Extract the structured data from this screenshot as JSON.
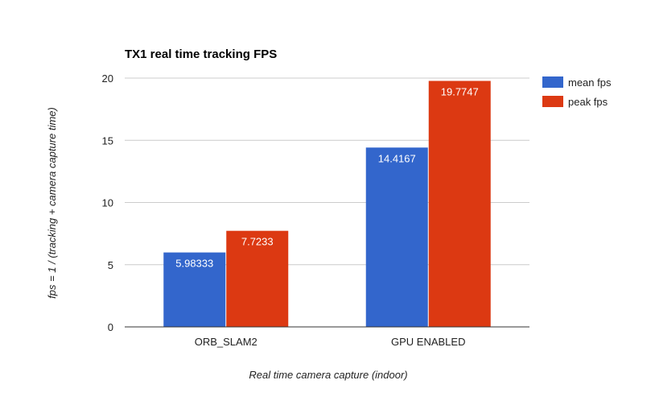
{
  "chart_data": {
    "type": "bar",
    "title": "TX1 real time tracking FPS",
    "xlabel": "Real time camera capture (indoor)",
    "ylabel": "fps = 1 / (tracking + camera capture time)",
    "categories": [
      "ORB_SLAM2",
      "GPU ENABLED"
    ],
    "series": [
      {
        "name": "mean fps",
        "values": [
          5.98333,
          14.4167
        ],
        "labels": [
          "5.98333",
          "14.4167"
        ],
        "color": "#3366cc"
      },
      {
        "name": "peak fps",
        "values": [
          7.7233,
          19.7747
        ],
        "labels": [
          "7.7233",
          "19.7747"
        ],
        "color": "#dc3912"
      }
    ],
    "ylim": [
      0,
      20
    ],
    "yticks": [
      0,
      5,
      10,
      15,
      20
    ],
    "grid": true,
    "legend_position": "right"
  }
}
